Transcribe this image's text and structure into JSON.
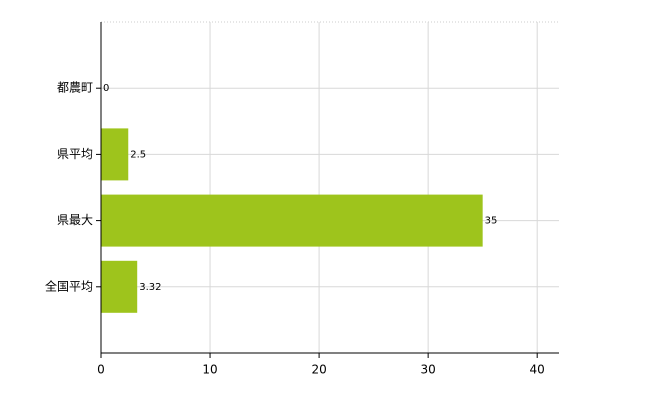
{
  "chart_data": {
    "type": "bar",
    "orientation": "horizontal",
    "categories": [
      "都農町",
      "県平均",
      "県最大",
      "全国平均"
    ],
    "values": [
      0,
      2.5,
      35,
      3.32
    ],
    "color": "#9ec41c",
    "xlim": [
      0,
      42
    ],
    "xticks": [
      0,
      10,
      20,
      30,
      40
    ],
    "grid": true
  }
}
